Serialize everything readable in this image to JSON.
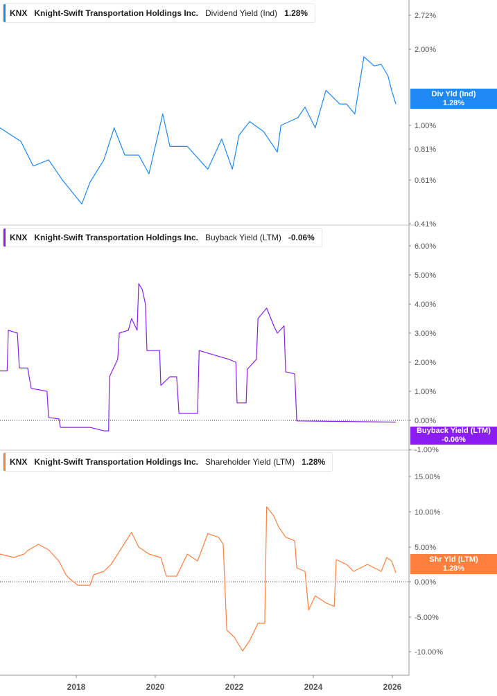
{
  "chart_data": [
    {
      "type": "line",
      "legend": {
        "ticker": "KNX",
        "company": "Knight-Swift Transportation Holdings Inc.",
        "metric": "Dividend Yield (Ind)",
        "value": "1.28%"
      },
      "badge": {
        "label": "Div Yld (Ind)",
        "value": "1.28%"
      },
      "color": "#1e88f5",
      "y_ticks": [
        {
          "v": 2.72,
          "label": "2.72%"
        },
        {
          "v": 2.0,
          "label": "2.00%"
        },
        {
          "v": 1.0,
          "label": "1.00%"
        },
        {
          "v": 0.81,
          "label": "0.81%"
        },
        {
          "v": 0.61,
          "label": "0.61%"
        },
        {
          "v": 0.41,
          "label": "0.41%"
        }
      ],
      "zero_line": false,
      "x": [
        2016.07,
        2016.6,
        2016.91,
        2017.3,
        2017.65,
        2018.14,
        2018.35,
        2018.7,
        2018.96,
        2019.23,
        2019.58,
        2019.84,
        2020.19,
        2020.37,
        2020.81,
        2021.33,
        2021.68,
        2021.95,
        2022.12,
        2022.39,
        2022.74,
        2023.09,
        2023.18,
        2023.61,
        2023.79,
        2024.05,
        2024.32,
        2024.67,
        2024.84,
        2025.05,
        2025.28,
        2025.54,
        2025.72,
        2025.89,
        2025.98,
        2026.09
      ],
      "y": [
        0.98,
        0.87,
        0.7,
        0.74,
        0.61,
        0.5,
        0.6,
        0.74,
        0.98,
        0.77,
        0.77,
        0.65,
        1.15,
        0.83,
        0.83,
        0.68,
        0.89,
        0.68,
        0.92,
        1.05,
        0.95,
        0.79,
        1.0,
        1.1,
        1.24,
        0.98,
        1.46,
        1.28,
        1.28,
        1.15,
        1.9,
        1.78,
        1.8,
        1.65,
        1.46,
        1.28
      ]
    },
    {
      "type": "line",
      "legend": {
        "ticker": "KNX",
        "company": "Knight-Swift Transportation Holdings Inc.",
        "metric": "Buyback Yield (LTM)",
        "value": "-0.06%"
      },
      "badge": {
        "label": "Buyback Yield (LTM)",
        "value": "-0.06%"
      },
      "color": "#8a1ef2",
      "y_ticks": [
        {
          "v": 6,
          "label": "6.00%"
        },
        {
          "v": 5,
          "label": "5.00%"
        },
        {
          "v": 4,
          "label": "4.00%"
        },
        {
          "v": 3,
          "label": "3.00%"
        },
        {
          "v": 2,
          "label": "2.00%"
        },
        {
          "v": 1,
          "label": "1.00%"
        },
        {
          "v": 0,
          "label": "0.00%"
        },
        {
          "v": -1,
          "label": "-1.00%"
        }
      ],
      "zero_line": true,
      "x": [
        2016.07,
        2016.25,
        2016.28,
        2016.51,
        2016.56,
        2016.77,
        2016.86,
        2017.26,
        2017.3,
        2017.56,
        2017.6,
        2018.35,
        2018.7,
        2018.82,
        2018.84,
        2019.05,
        2019.09,
        2019.32,
        2019.4,
        2019.54,
        2019.58,
        2019.67,
        2019.75,
        2019.79,
        2020.11,
        2020.14,
        2020.37,
        2020.54,
        2020.6,
        2021.07,
        2021.11,
        2021.86,
        2022.04,
        2022.07,
        2022.3,
        2022.33,
        2022.56,
        2022.6,
        2022.82,
        2023.0,
        2023.09,
        2023.26,
        2023.3,
        2023.53,
        2023.58,
        2026.09
      ],
      "y": [
        1.7,
        1.7,
        3.1,
        3.0,
        1.8,
        1.8,
        1.1,
        1.0,
        0.1,
        0.05,
        -0.24,
        -0.24,
        -0.36,
        -0.36,
        1.5,
        2.1,
        3.0,
        3.1,
        3.5,
        3.1,
        4.7,
        4.5,
        4.0,
        2.4,
        2.4,
        1.2,
        1.5,
        1.5,
        0.24,
        0.24,
        2.4,
        2.1,
        2.0,
        0.6,
        0.6,
        1.76,
        2.1,
        3.5,
        3.86,
        3.25,
        3.0,
        3.25,
        1.67,
        1.6,
        -0.02,
        -0.06
      ]
    },
    {
      "type": "line",
      "legend": {
        "ticker": "KNX",
        "company": "Knight-Swift Transportation Holdings Inc.",
        "metric": "Shareholder Yield (LTM)",
        "value": "1.28%"
      },
      "badge": {
        "label": "Shr Yld (LTM)",
        "value": "1.28%"
      },
      "color": "#ff7f3f",
      "y_ticks": [
        {
          "v": 15,
          "label": "15.00%"
        },
        {
          "v": 10,
          "label": "10.00%"
        },
        {
          "v": 5,
          "label": "5.00%"
        },
        {
          "v": 0,
          "label": "0.00%"
        },
        {
          "v": -5,
          "label": "-5.00%"
        },
        {
          "v": -10,
          "label": "-10.00%"
        }
      ],
      "zero_line": true,
      "x": [
        2016.07,
        2016.42,
        2016.68,
        2016.77,
        2017.04,
        2017.3,
        2017.56,
        2017.74,
        2017.82,
        2018.04,
        2018.35,
        2018.44,
        2018.7,
        2018.88,
        2019.05,
        2019.4,
        2019.58,
        2019.84,
        2020.14,
        2020.28,
        2020.54,
        2020.81,
        2021.07,
        2021.33,
        2021.6,
        2021.72,
        2021.81,
        2022.0,
        2022.21,
        2022.39,
        2022.6,
        2022.77,
        2022.82,
        2023.0,
        2023.12,
        2023.3,
        2023.53,
        2023.58,
        2023.79,
        2023.88,
        2024.05,
        2024.32,
        2024.53,
        2024.58,
        2024.84,
        2025.02,
        2025.37,
        2025.72,
        2025.86,
        2025.98,
        2026.09
      ],
      "y": [
        4.0,
        3.5,
        4.0,
        4.5,
        5.4,
        4.6,
        3.0,
        1.0,
        0.5,
        -0.5,
        -0.5,
        1.0,
        1.5,
        2.5,
        4.0,
        7.1,
        5.0,
        4.0,
        3.5,
        0.8,
        0.8,
        4.0,
        3.0,
        6.9,
        6.4,
        5.4,
        -6.9,
        -7.9,
        -9.9,
        -8.4,
        -5.9,
        -5.9,
        10.7,
        9.4,
        7.9,
        6.4,
        5.9,
        2.0,
        1.5,
        -4.0,
        -2.0,
        -3.0,
        -3.5,
        3.2,
        2.5,
        1.5,
        2.5,
        1.5,
        3.5,
        3.0,
        1.28
      ]
    }
  ],
  "x_axis": {
    "ticks": [
      {
        "v": 2018,
        "label": "2018"
      },
      {
        "v": 2020,
        "label": "2020"
      },
      {
        "v": 2022,
        "label": "2022"
      },
      {
        "v": 2024,
        "label": "2024"
      },
      {
        "v": 2026,
        "label": "2026"
      }
    ],
    "range": [
      2016.07,
      2026.4
    ]
  }
}
